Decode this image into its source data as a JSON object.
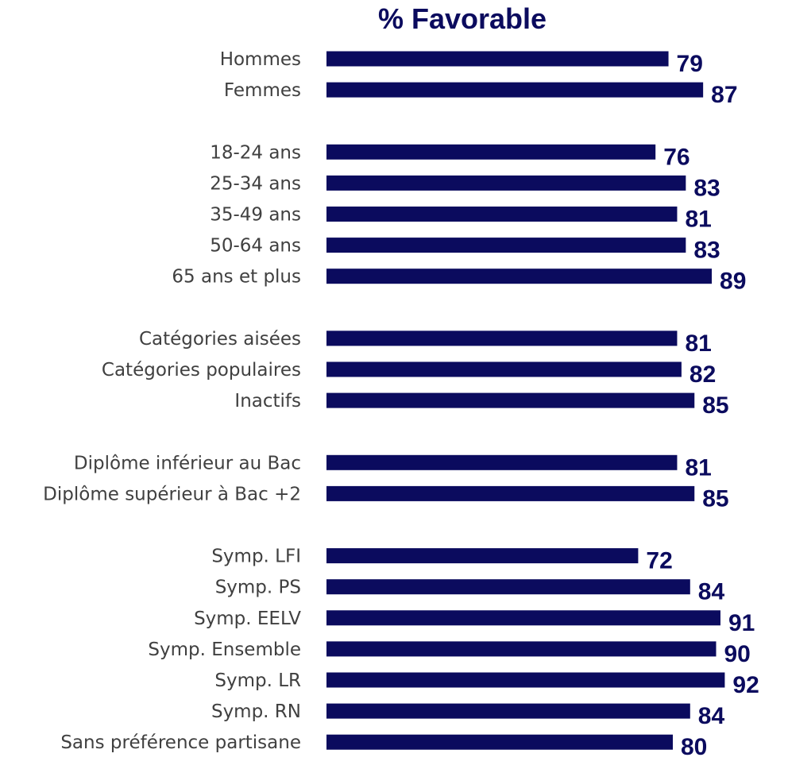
{
  "chart_data": {
    "type": "bar",
    "orientation": "horizontal",
    "title": "% Favorable",
    "xlabel": "",
    "ylabel": "",
    "xlim": [
      0,
      100
    ],
    "grid": false,
    "legend": "none",
    "colors": {
      "bar": "#0b0b5e",
      "label": "#0b0b5e",
      "category_text": "#404040",
      "background": "#ffffff"
    },
    "groups": [
      {
        "categories": [
          "Hommes",
          "Femmes"
        ],
        "values": [
          79,
          87
        ]
      },
      {
        "categories": [
          "18-24 ans",
          "25-34 ans",
          "35-49 ans",
          "50-64 ans",
          "65 ans et plus"
        ],
        "values": [
          76,
          83,
          81,
          83,
          89
        ]
      },
      {
        "categories": [
          "Catégories aisées",
          "Catégories populaires",
          "Inactifs"
        ],
        "values": [
          81,
          82,
          85
        ]
      },
      {
        "categories": [
          "Diplôme inférieur au Bac",
          "Diplôme supérieur à Bac +2"
        ],
        "values": [
          81,
          85
        ]
      },
      {
        "categories": [
          "Symp. LFI",
          "Symp. PS",
          "Symp. EELV",
          "Symp. Ensemble",
          "Symp. LR",
          "Symp. RN",
          "Sans préférence partisane"
        ],
        "values": [
          72,
          84,
          91,
          90,
          92,
          84,
          80
        ]
      }
    ]
  }
}
